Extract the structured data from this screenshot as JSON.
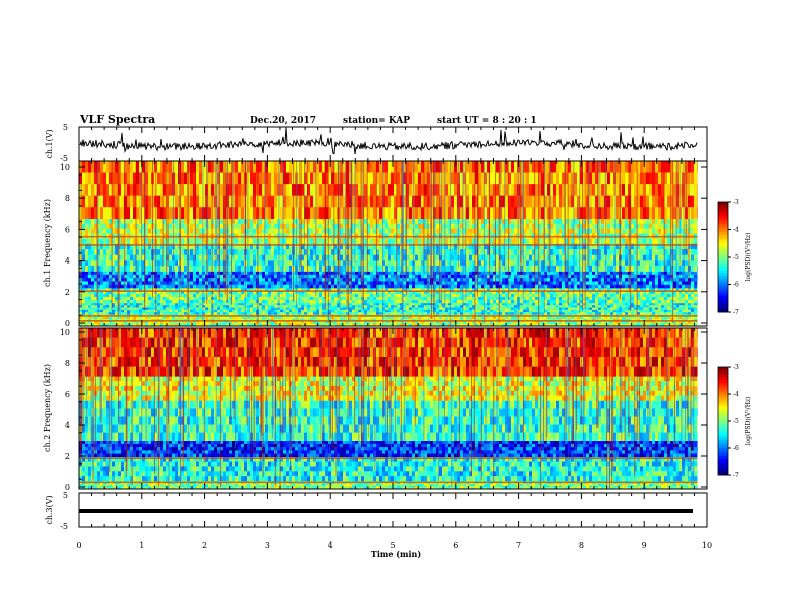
{
  "header": {
    "title": "VLF Spectra",
    "date": "Dec.20, 2017",
    "station": "station= KAP",
    "start": "start  UT  =   8  : 20 : 1"
  },
  "chart_data": [
    {
      "type": "line",
      "name": "ch1-waveform",
      "ylabel": "ch.1(V)",
      "ylim": [
        -5,
        5
      ],
      "yticks": [
        "5",
        "-5"
      ],
      "xlim": [
        0,
        10
      ],
      "color": "#000000"
    },
    {
      "type": "heatmap",
      "name": "ch1-spectrogram",
      "ylabel": "ch.1 Frequency (kHz)",
      "ylim": [
        0,
        10
      ],
      "yticks": [
        "10",
        "8",
        "6",
        "4",
        "2",
        "0"
      ],
      "xlim": [
        0,
        9.85
      ],
      "colorbar": {
        "label": "log(PSD)(V²/Hz)",
        "range": [
          -7,
          -3
        ],
        "ticks": [
          "-3",
          "-4",
          "-5",
          "-6",
          "-7"
        ]
      },
      "bands_khz": [
        {
          "from": 0,
          "to": 0.7,
          "level": -4.8
        },
        {
          "from": 0.7,
          "to": 1.4,
          "level": -5.3
        },
        {
          "from": 1.4,
          "to": 2.3,
          "level": -5.1
        },
        {
          "from": 2.3,
          "to": 3.3,
          "level": -6.0
        },
        {
          "from": 3.3,
          "to": 5.0,
          "level": -5.3
        },
        {
          "from": 5.0,
          "to": 6.5,
          "level": -4.8
        },
        {
          "from": 6.5,
          "to": 10,
          "level": -4.0
        }
      ],
      "lines_khz": [
        0.3,
        0.6,
        2.1,
        4.9,
        5.4
      ]
    },
    {
      "type": "heatmap",
      "name": "ch2-spectrogram",
      "ylabel": "ch.2 Frequency (kHz)",
      "ylim": [
        0,
        10
      ],
      "yticks": [
        "10",
        "8",
        "6",
        "4",
        "2",
        "0"
      ],
      "xlim": [
        0,
        9.85
      ],
      "colorbar": {
        "label": "log(PSD)(V²/Hz)",
        "range": [
          -7,
          -3
        ],
        "ticks": [
          "-3",
          "-4",
          "-5",
          "-6",
          "-7"
        ]
      },
      "bands_khz": [
        {
          "from": 0,
          "to": 0.5,
          "level": -5.0
        },
        {
          "from": 0.5,
          "to": 2.0,
          "level": -5.4
        },
        {
          "from": 2.0,
          "to": 3.0,
          "level": -6.3
        },
        {
          "from": 3.0,
          "to": 5.5,
          "level": -5.3
        },
        {
          "from": 5.5,
          "to": 7.0,
          "level": -4.6
        },
        {
          "from": 7.0,
          "to": 10,
          "level": -3.7
        }
      ],
      "lines_khz": [
        0.4,
        1.9
      ]
    },
    {
      "type": "line",
      "name": "ch3-waveform",
      "ylabel": "ch.3(V)",
      "ylim": [
        -5,
        5
      ],
      "yticks": [
        "5",
        "-5"
      ],
      "xlim": [
        0,
        10
      ],
      "constant_value": 0,
      "color": "#000000"
    }
  ],
  "xaxis": {
    "label": "Time  (min)",
    "range": [
      0,
      10
    ],
    "ticks": [
      "0",
      "1",
      "2",
      "3",
      "4",
      "5",
      "6",
      "7",
      "8",
      "9",
      "10"
    ]
  }
}
